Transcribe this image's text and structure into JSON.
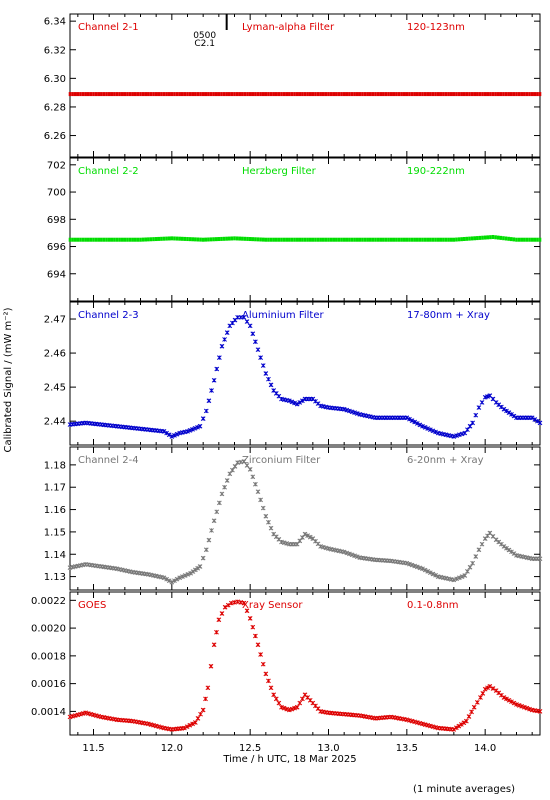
{
  "figure": {
    "ylabel": "Calibrated Signal / (mW m⁻²)",
    "xlabel": "Time / h UTC, 18 Mar 2025",
    "footnote": "(1 minute averages)",
    "marker": {
      "line1": "0500",
      "line2": "C2.1",
      "time": 12.35
    }
  },
  "chart_data": [
    {
      "type": "scatter",
      "name": "Channel 2-1",
      "filter": "Lyman-alpha Filter",
      "band": "120-123nm",
      "color": "#dd0000",
      "xlim": [
        11.35,
        14.35
      ],
      "ylim": [
        6.245,
        6.345
      ],
      "yticks": [
        6.26,
        6.28,
        6.3,
        6.32,
        6.34
      ],
      "ytick_labels": [
        "6.26",
        "6.28",
        "6.30",
        "6.32",
        "6.34"
      ],
      "points": [
        [
          11.35,
          6.289
        ],
        [
          11.6,
          6.289
        ],
        [
          11.8,
          6.289
        ],
        [
          12.0,
          6.289
        ],
        [
          12.2,
          6.289
        ],
        [
          12.5,
          6.289
        ],
        [
          12.75,
          6.289
        ],
        [
          13.0,
          6.289
        ],
        [
          13.25,
          6.289
        ],
        [
          13.5,
          6.289
        ],
        [
          13.75,
          6.289
        ],
        [
          14.0,
          6.289
        ],
        [
          14.2,
          6.289
        ],
        [
          14.35,
          6.289
        ]
      ]
    },
    {
      "type": "scatter",
      "name": "Channel 2-2",
      "filter": "Herzberg Filter",
      "band": "190-222nm",
      "color": "#00dd00",
      "xlim": [
        11.35,
        14.35
      ],
      "ylim": [
        692.0,
        702.5
      ],
      "yticks": [
        694,
        696,
        698,
        700,
        702
      ],
      "ytick_labels": [
        "694",
        "696",
        "698",
        "700",
        "702"
      ],
      "points": [
        [
          11.35,
          696.5
        ],
        [
          11.6,
          696.5
        ],
        [
          11.8,
          696.5
        ],
        [
          12.0,
          696.6
        ],
        [
          12.2,
          696.5
        ],
        [
          12.4,
          696.6
        ],
        [
          12.6,
          696.5
        ],
        [
          12.8,
          696.5
        ],
        [
          13.0,
          696.5
        ],
        [
          13.2,
          696.5
        ],
        [
          13.4,
          696.5
        ],
        [
          13.6,
          696.5
        ],
        [
          13.8,
          696.5
        ],
        [
          14.05,
          696.7
        ],
        [
          14.2,
          696.5
        ],
        [
          14.35,
          696.5
        ]
      ]
    },
    {
      "type": "scatter",
      "name": "Channel 2-3",
      "filter": "Aluminium Filter",
      "band": "17-80nm + Xray",
      "color": "#0000cc",
      "xlim": [
        11.35,
        14.35
      ],
      "ylim": [
        2.433,
        2.475
      ],
      "yticks": [
        2.44,
        2.45,
        2.46,
        2.47
      ],
      "ytick_labels": [
        "2.44",
        "2.45",
        "2.46",
        "2.47"
      ],
      "points": [
        [
          11.35,
          2.439
        ],
        [
          11.45,
          2.4395
        ],
        [
          11.55,
          2.439
        ],
        [
          11.65,
          2.4385
        ],
        [
          11.75,
          2.438
        ],
        [
          11.85,
          2.4375
        ],
        [
          11.95,
          2.437
        ],
        [
          12.0,
          2.4355
        ],
        [
          12.05,
          2.4365
        ],
        [
          12.1,
          2.437
        ],
        [
          12.18,
          2.4385
        ],
        [
          12.22,
          2.443
        ],
        [
          12.27,
          2.452
        ],
        [
          12.32,
          2.462
        ],
        [
          12.37,
          2.468
        ],
        [
          12.42,
          2.4705
        ],
        [
          12.46,
          2.4705
        ],
        [
          12.5,
          2.468
        ],
        [
          12.55,
          2.461
        ],
        [
          12.6,
          2.454
        ],
        [
          12.65,
          2.449
        ],
        [
          12.7,
          2.4465
        ],
        [
          12.75,
          2.446
        ],
        [
          12.8,
          2.445
        ],
        [
          12.85,
          2.4465
        ],
        [
          12.9,
          2.4465
        ],
        [
          12.95,
          2.4445
        ],
        [
          13.0,
          2.444
        ],
        [
          13.1,
          2.4435
        ],
        [
          13.2,
          2.442
        ],
        [
          13.3,
          2.441
        ],
        [
          13.4,
          2.441
        ],
        [
          13.5,
          2.441
        ],
        [
          13.6,
          2.4385
        ],
        [
          13.7,
          2.4365
        ],
        [
          13.8,
          2.4355
        ],
        [
          13.87,
          2.4365
        ],
        [
          13.92,
          2.4395
        ],
        [
          13.96,
          2.444
        ],
        [
          14.0,
          2.447
        ],
        [
          14.03,
          2.4475
        ],
        [
          14.07,
          2.4455
        ],
        [
          14.12,
          2.4435
        ],
        [
          14.2,
          2.441
        ],
        [
          14.3,
          2.441
        ],
        [
          14.35,
          2.4395
        ]
      ]
    },
    {
      "type": "scatter",
      "name": "Channel 2-4",
      "filter": "Zirconium Filter",
      "band": "6-20nm + Xray",
      "color": "#777777",
      "xlim": [
        11.35,
        14.35
      ],
      "ylim": [
        1.124,
        1.188
      ],
      "yticks": [
        1.13,
        1.14,
        1.15,
        1.16,
        1.17,
        1.18
      ],
      "ytick_labels": [
        "1.13",
        "1.14",
        "1.15",
        "1.16",
        "1.17",
        "1.18"
      ],
      "points": [
        [
          11.35,
          1.134
        ],
        [
          11.45,
          1.1355
        ],
        [
          11.55,
          1.1345
        ],
        [
          11.65,
          1.1335
        ],
        [
          11.75,
          1.132
        ],
        [
          11.85,
          1.131
        ],
        [
          11.95,
          1.1295
        ],
        [
          12.0,
          1.1275
        ],
        [
          12.05,
          1.1295
        ],
        [
          12.12,
          1.1315
        ],
        [
          12.18,
          1.1345
        ],
        [
          12.22,
          1.142
        ],
        [
          12.27,
          1.155
        ],
        [
          12.32,
          1.167
        ],
        [
          12.37,
          1.176
        ],
        [
          12.42,
          1.181
        ],
        [
          12.46,
          1.1815
        ],
        [
          12.5,
          1.178
        ],
        [
          12.55,
          1.168
        ],
        [
          12.6,
          1.157
        ],
        [
          12.65,
          1.149
        ],
        [
          12.7,
          1.1455
        ],
        [
          12.75,
          1.1445
        ],
        [
          12.8,
          1.1445
        ],
        [
          12.85,
          1.149
        ],
        [
          12.9,
          1.147
        ],
        [
          12.95,
          1.1435
        ],
        [
          13.0,
          1.1425
        ],
        [
          13.1,
          1.141
        ],
        [
          13.2,
          1.1385
        ],
        [
          13.3,
          1.1375
        ],
        [
          13.4,
          1.137
        ],
        [
          13.5,
          1.136
        ],
        [
          13.6,
          1.1335
        ],
        [
          13.7,
          1.13
        ],
        [
          13.8,
          1.1285
        ],
        [
          13.87,
          1.1305
        ],
        [
          13.92,
          1.136
        ],
        [
          13.96,
          1.142
        ],
        [
          14.0,
          1.147
        ],
        [
          14.03,
          1.1495
        ],
        [
          14.07,
          1.1465
        ],
        [
          14.12,
          1.1435
        ],
        [
          14.2,
          1.1395
        ],
        [
          14.3,
          1.138
        ],
        [
          14.35,
          1.138
        ]
      ]
    },
    {
      "type": "scatter",
      "name": "GOES",
      "filter": "Xray Sensor",
      "band": "0.1-0.8nm",
      "color": "#dd0000",
      "xlim": [
        11.35,
        14.35
      ],
      "ylim": [
        0.00123,
        0.00226
      ],
      "yticks": [
        0.0014,
        0.0016,
        0.0018,
        0.002,
        0.0022
      ],
      "ytick_labels": [
        "0.0014",
        "0.0016",
        "0.0018",
        "0.0020",
        "0.0022"
      ],
      "points": [
        [
          11.35,
          0.00136
        ],
        [
          11.45,
          0.00139
        ],
        [
          11.55,
          0.00136
        ],
        [
          11.65,
          0.00134
        ],
        [
          11.75,
          0.00133
        ],
        [
          11.85,
          0.00131
        ],
        [
          11.95,
          0.00128
        ],
        [
          12.0,
          0.00127
        ],
        [
          12.08,
          0.00128
        ],
        [
          12.15,
          0.00132
        ],
        [
          12.2,
          0.00141
        ],
        [
          12.23,
          0.00157
        ],
        [
          12.27,
          0.00188
        ],
        [
          12.3,
          0.00206
        ],
        [
          12.34,
          0.00215
        ],
        [
          12.38,
          0.00218
        ],
        [
          12.42,
          0.00219
        ],
        [
          12.46,
          0.00218
        ],
        [
          12.5,
          0.00207
        ],
        [
          12.55,
          0.00188
        ],
        [
          12.6,
          0.00167
        ],
        [
          12.65,
          0.00152
        ],
        [
          12.7,
          0.00143
        ],
        [
          12.75,
          0.00141
        ],
        [
          12.8,
          0.00143
        ],
        [
          12.85,
          0.00152
        ],
        [
          12.9,
          0.00146
        ],
        [
          12.95,
          0.0014
        ],
        [
          13.0,
          0.00139
        ],
        [
          13.1,
          0.00138
        ],
        [
          13.2,
          0.00137
        ],
        [
          13.3,
          0.00135
        ],
        [
          13.4,
          0.00136
        ],
        [
          13.5,
          0.00134
        ],
        [
          13.6,
          0.00131
        ],
        [
          13.7,
          0.00128
        ],
        [
          13.8,
          0.00127
        ],
        [
          13.88,
          0.00133
        ],
        [
          13.93,
          0.00143
        ],
        [
          13.97,
          0.0015
        ],
        [
          14.0,
          0.00156
        ],
        [
          14.03,
          0.00158
        ],
        [
          14.07,
          0.00155
        ],
        [
          14.12,
          0.0015
        ],
        [
          14.2,
          0.00145
        ],
        [
          14.3,
          0.00141
        ],
        [
          14.35,
          0.0014
        ]
      ]
    }
  ],
  "xaxis": {
    "xlim": [
      11.35,
      14.35
    ],
    "ticks": [
      11.5,
      12.0,
      12.5,
      13.0,
      13.5,
      14.0
    ],
    "tick_labels": [
      "11.5",
      "12.0",
      "12.5",
      "13.0",
      "13.5",
      "14.0"
    ]
  }
}
